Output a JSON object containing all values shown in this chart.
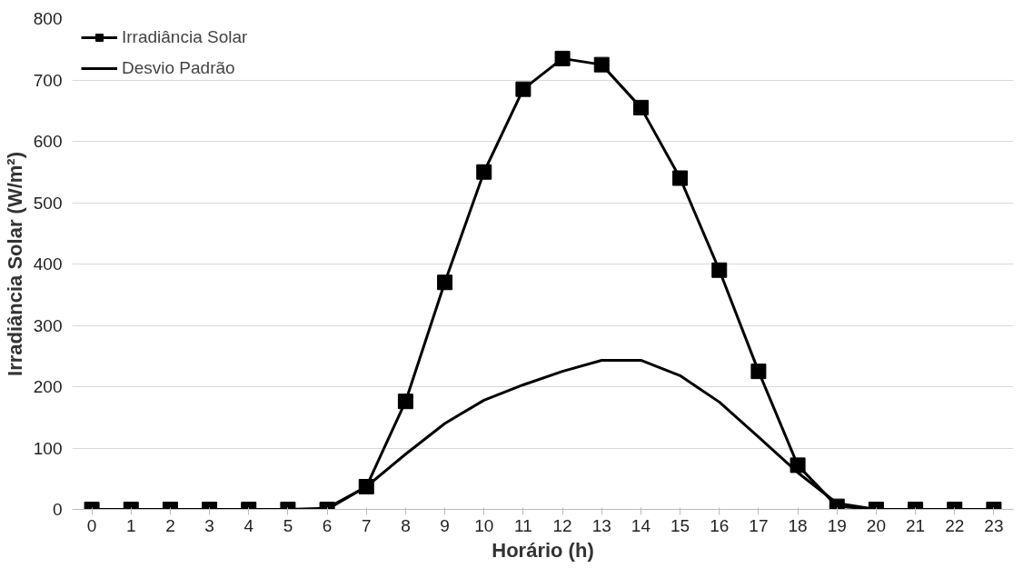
{
  "chart_data": {
    "type": "line",
    "xlabel": "Horário (h)",
    "ylabel": "Irradiância Solar (W/m²)",
    "x": [
      0,
      1,
      2,
      3,
      4,
      5,
      6,
      7,
      8,
      9,
      10,
      11,
      12,
      13,
      14,
      15,
      16,
      17,
      18,
      19,
      20,
      21,
      22,
      23
    ],
    "xlim": [
      -0.5,
      23.5
    ],
    "xticks": [
      0,
      1,
      2,
      3,
      4,
      5,
      6,
      7,
      8,
      9,
      10,
      11,
      12,
      13,
      14,
      15,
      16,
      17,
      18,
      19,
      20,
      21,
      22,
      23
    ],
    "series": [
      {
        "name": "Irradiância Solar",
        "color": "#000000",
        "marker": "square",
        "values": [
          0,
          0,
          0,
          0,
          0,
          0,
          0,
          37,
          176,
          370,
          550,
          685,
          735,
          725,
          655,
          540,
          390,
          225,
          72,
          5,
          0,
          0,
          0,
          0
        ]
      },
      {
        "name": "Desvio Padrão",
        "color": "#000000",
        "marker": "none",
        "values": [
          0,
          0,
          0,
          0,
          0,
          0,
          2,
          37,
          90,
          140,
          178,
          203,
          225,
          243,
          243,
          218,
          175,
          118,
          60,
          10,
          0,
          0,
          0,
          0
        ]
      }
    ],
    "ylim": [
      0,
      800
    ],
    "yticks": [
      0,
      100,
      200,
      300,
      400,
      500,
      600,
      700,
      800
    ],
    "grid": "y",
    "legend": "top left",
    "line_style": "solid"
  }
}
